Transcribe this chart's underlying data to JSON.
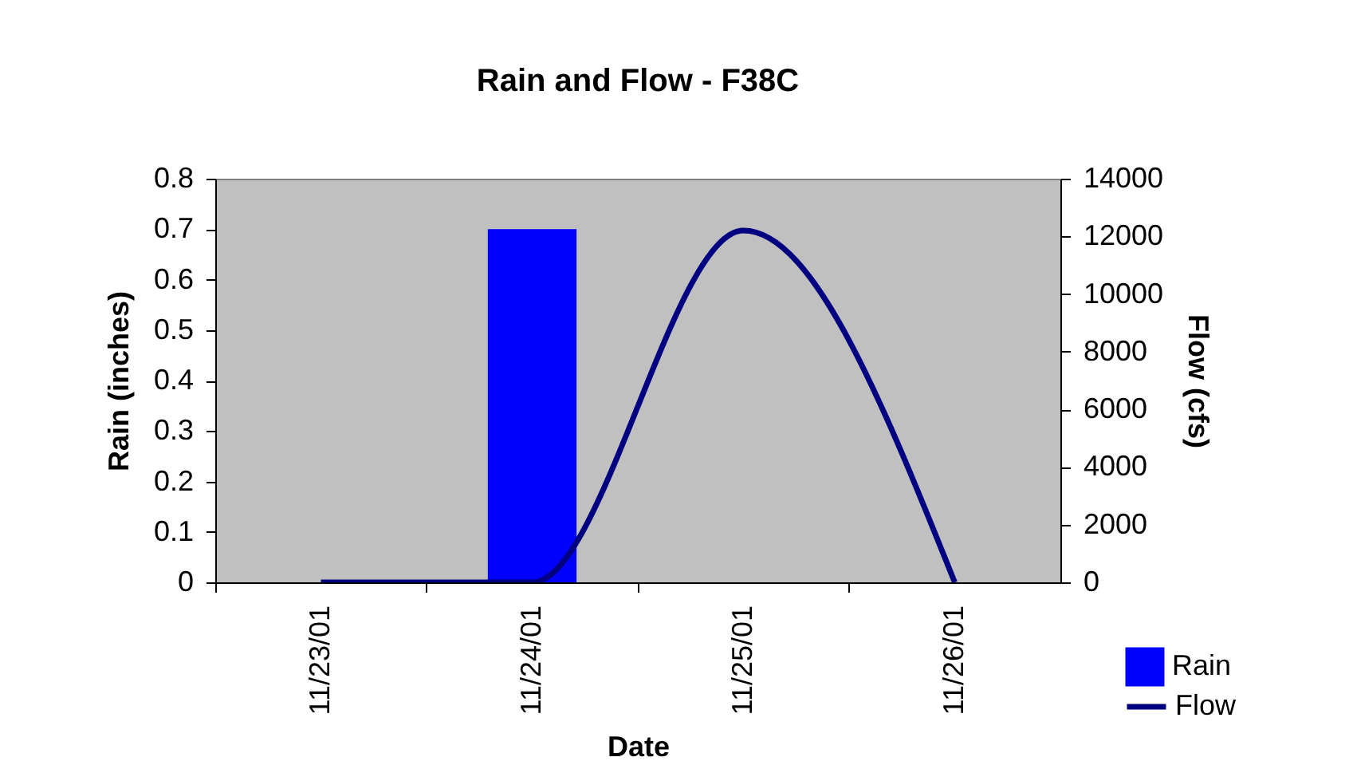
{
  "chart_data": {
    "type": "bar",
    "title": "Rain and Flow - F38C",
    "xlabel": "Date",
    "ylabel": "Rain (inches)",
    "y2label": "Flow (cfs)",
    "categories": [
      "11/23/01",
      "11/24/01",
      "11/25/01",
      "11/26/01"
    ],
    "series": [
      {
        "name": "Rain",
        "color": "#0000ff",
        "values": [
          0,
          0.7,
          0,
          0
        ]
      },
      {
        "name": "Flow",
        "type": "line",
        "axis": "y2",
        "color": "#000080",
        "values": [
          0,
          0,
          12200,
          0
        ]
      }
    ],
    "ylim": [
      0,
      0.8
    ],
    "yticks": [
      0,
      0.1,
      0.2,
      0.3,
      0.4,
      0.5,
      0.6,
      0.7,
      0.8
    ],
    "y2lim": [
      0,
      14000
    ],
    "y2ticks": [
      0,
      2000,
      4000,
      6000,
      8000,
      10000,
      12000,
      14000
    ],
    "legend": "bottom right"
  }
}
